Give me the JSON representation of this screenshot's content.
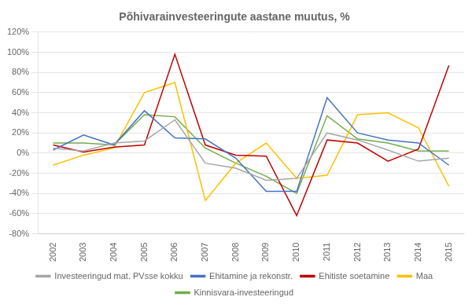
{
  "chart_data": {
    "type": "line",
    "title": "Põhivarainvesteeringute aastane muutus, %",
    "categories": [
      "2002",
      "2003",
      "2004",
      "2005",
      "2006",
      "2007",
      "2008",
      "2009",
      "2010",
      "2011",
      "2012",
      "2013",
      "2014",
      "2015"
    ],
    "series": [
      {
        "name": "Investeeringud mat. PVsse kokku",
        "color": "#a6a6a6",
        "values": [
          5,
          2,
          10,
          12,
          33,
          -10,
          -15,
          -27,
          -25,
          20,
          13,
          3,
          -8,
          -5
        ]
      },
      {
        "name": "Ehitamine ja rekonstr.",
        "color": "#4472c4",
        "values": [
          3,
          18,
          8,
          42,
          15,
          14,
          -5,
          -38,
          -38,
          55,
          20,
          13,
          10,
          -12
        ]
      },
      {
        "name": "Ehitiste soetamine",
        "color": "#c00000",
        "values": [
          8,
          1,
          6,
          8,
          98,
          8,
          -2,
          -3,
          -62,
          13,
          10,
          -8,
          4,
          87
        ]
      },
      {
        "name": "Maa",
        "color": "#ffc000",
        "values": [
          -12,
          -2,
          5,
          60,
          70,
          -47,
          -10,
          10,
          -25,
          -22,
          38,
          40,
          25,
          -33
        ]
      },
      {
        "name": "Kinnisvara-investeeringud",
        "color": "#70ad47",
        "values": [
          10,
          10,
          8,
          38,
          36,
          5,
          -10,
          -23,
          -40,
          37,
          14,
          10,
          2,
          2
        ]
      }
    ],
    "ylim": [
      -80,
      120
    ],
    "yticks": [
      {
        "value": -80,
        "label": "-80%"
      },
      {
        "value": -60,
        "label": "-60%"
      },
      {
        "value": -40,
        "label": "-40%"
      },
      {
        "value": -20,
        "label": "-20%"
      },
      {
        "value": 0,
        "label": "0%"
      },
      {
        "value": 20,
        "label": "20%"
      },
      {
        "value": 40,
        "label": "40%"
      },
      {
        "value": 60,
        "label": "60%"
      },
      {
        "value": 80,
        "label": "80%"
      },
      {
        "value": 100,
        "label": "100%"
      },
      {
        "value": 120,
        "label": "120%"
      }
    ],
    "grid": "y",
    "legend": "bottom"
  }
}
